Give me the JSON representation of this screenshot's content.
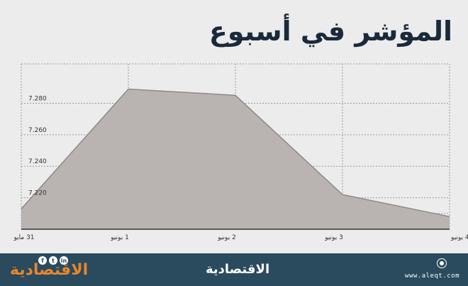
{
  "chart_data": {
    "type": "area",
    "title": "المؤشر في أسبوع",
    "categories": [
      "31 مايو",
      "1 يونيو",
      "2 يونيو",
      "3 يونيو",
      "4 يونيو"
    ],
    "values": [
      7213,
      7289,
      7285,
      7222,
      7208
    ],
    "yticks": [
      7220,
      7240,
      7260,
      7280
    ],
    "ytick_labels": [
      "7.220",
      "7.240",
      "7.260",
      "7.280"
    ],
    "ylim": [
      7200,
      7305
    ],
    "xlabel": "",
    "ylabel": "",
    "grid": true,
    "colors": {
      "fill": "#b9b3b1",
      "stroke": "#8f8987",
      "grid": "#9a9a9a",
      "axis": "#333333"
    }
  },
  "footer": {
    "brand_left": "الاقتصادية",
    "brand_center": "الاقتصادية",
    "url": "www.aleqt.com",
    "social_icons": [
      "f",
      "t",
      "in"
    ]
  }
}
